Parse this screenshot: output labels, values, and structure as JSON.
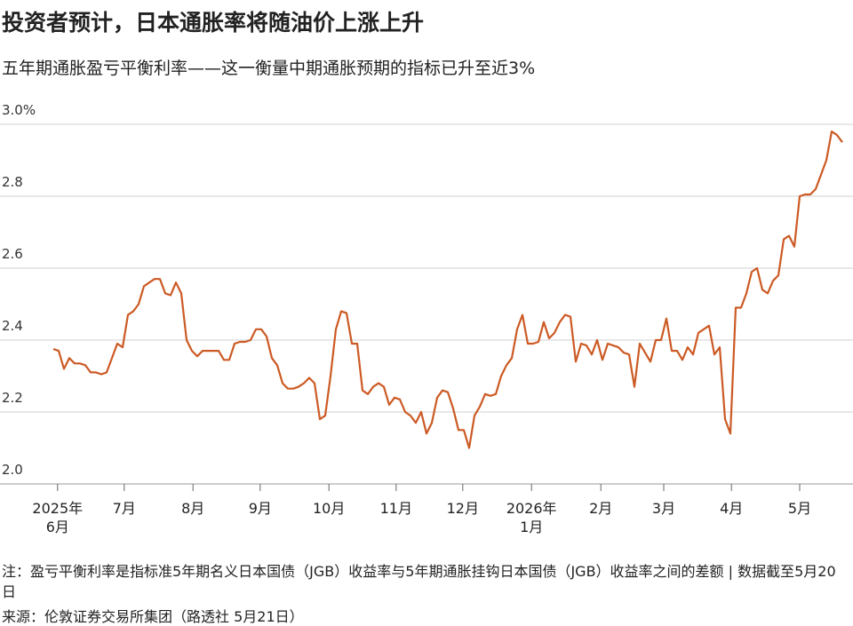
{
  "chart_data": {
    "type": "line",
    "title": "投资者预计，日本通胀率将随油价上涨上升",
    "subtitle": "五年期通胀盈亏平衡利率——这一衡量中期通胀预期的指标已升至近3%",
    "note": "注：盈亏平衡利率是指标准5年期名义日本国债（JGB）收益率与5年期通胀挂钩日本国债（JGB）收益率之间的差额 | 数据截至5月20日",
    "source": "来源：伦敦证券交易所集团（路透社 5月21日）",
    "color": "#cc5a24",
    "grid": true,
    "values": [
      2.375,
      2.37,
      2.32,
      2.35,
      2.335,
      2.335,
      2.33,
      2.31,
      2.31,
      2.305,
      2.31,
      2.35,
      2.39,
      2.38,
      2.47,
      2.48,
      2.5,
      2.55,
      2.56,
      2.57,
      2.57,
      2.53,
      2.525,
      2.56,
      2.53,
      2.4,
      2.37,
      2.355,
      2.37,
      2.37,
      2.37,
      2.37,
      2.345,
      2.345,
      2.39,
      2.395,
      2.395,
      2.4,
      2.43,
      2.43,
      2.41,
      2.35,
      2.33,
      2.28,
      2.265,
      2.265,
      2.27,
      2.28,
      2.295,
      2.28,
      2.18,
      2.19,
      2.3,
      2.43,
      2.48,
      2.475,
      2.39,
      2.39,
      2.26,
      2.25,
      2.27,
      2.28,
      2.27,
      2.22,
      2.24,
      2.235,
      2.2,
      2.19,
      2.17,
      2.2,
      2.14,
      2.17,
      2.24,
      2.26,
      2.255,
      2.21,
      2.15,
      2.15,
      2.1,
      2.19,
      2.215,
      2.25,
      2.245,
      2.25,
      2.3,
      2.33,
      2.35,
      2.43,
      2.47,
      2.39,
      2.39,
      2.395,
      2.45,
      2.405,
      2.42,
      2.45,
      2.47,
      2.465,
      2.34,
      2.39,
      2.385,
      2.36,
      2.4,
      2.345,
      2.39,
      2.385,
      2.38,
      2.365,
      2.36,
      2.27,
      2.39,
      2.365,
      2.34,
      2.4,
      2.4,
      2.46,
      2.37,
      2.37,
      2.345,
      2.38,
      2.36,
      2.42,
      2.43,
      2.44,
      2.36,
      2.38,
      2.18,
      2.14,
      2.49,
      2.49,
      2.53,
      2.59,
      2.6,
      2.54,
      2.53,
      2.565,
      2.58,
      2.68,
      2.69,
      2.66,
      2.8,
      2.805,
      2.805,
      2.82,
      2.86,
      2.9,
      2.98,
      2.97,
      2.95
    ],
    "xlim": [
      0,
      148
    ],
    "xticks": [
      {
        "value": 0.8,
        "label": "2025年\n6月"
      },
      {
        "value": 13.3,
        "label": "7月"
      },
      {
        "value": 26.2,
        "label": "8月"
      },
      {
        "value": 38.8,
        "label": "9月"
      },
      {
        "value": 51.7,
        "label": "10月"
      },
      {
        "value": 64.3,
        "label": "11月"
      },
      {
        "value": 76.8,
        "label": "12月"
      },
      {
        "value": 89.7,
        "label": "2026年\n1月"
      },
      {
        "value": 102.7,
        "label": "2月"
      },
      {
        "value": 114.5,
        "label": "3月"
      },
      {
        "value": 127.2,
        "label": "4月"
      },
      {
        "value": 140,
        "label": "5月"
      }
    ],
    "ylim": [
      2.0,
      3.0
    ],
    "yticks": [
      {
        "value": 2,
        "label": "2.0"
      },
      2.2,
      2.4,
      2.6,
      2.8,
      {
        "value": 3,
        "label": "3.0%"
      }
    ]
  }
}
